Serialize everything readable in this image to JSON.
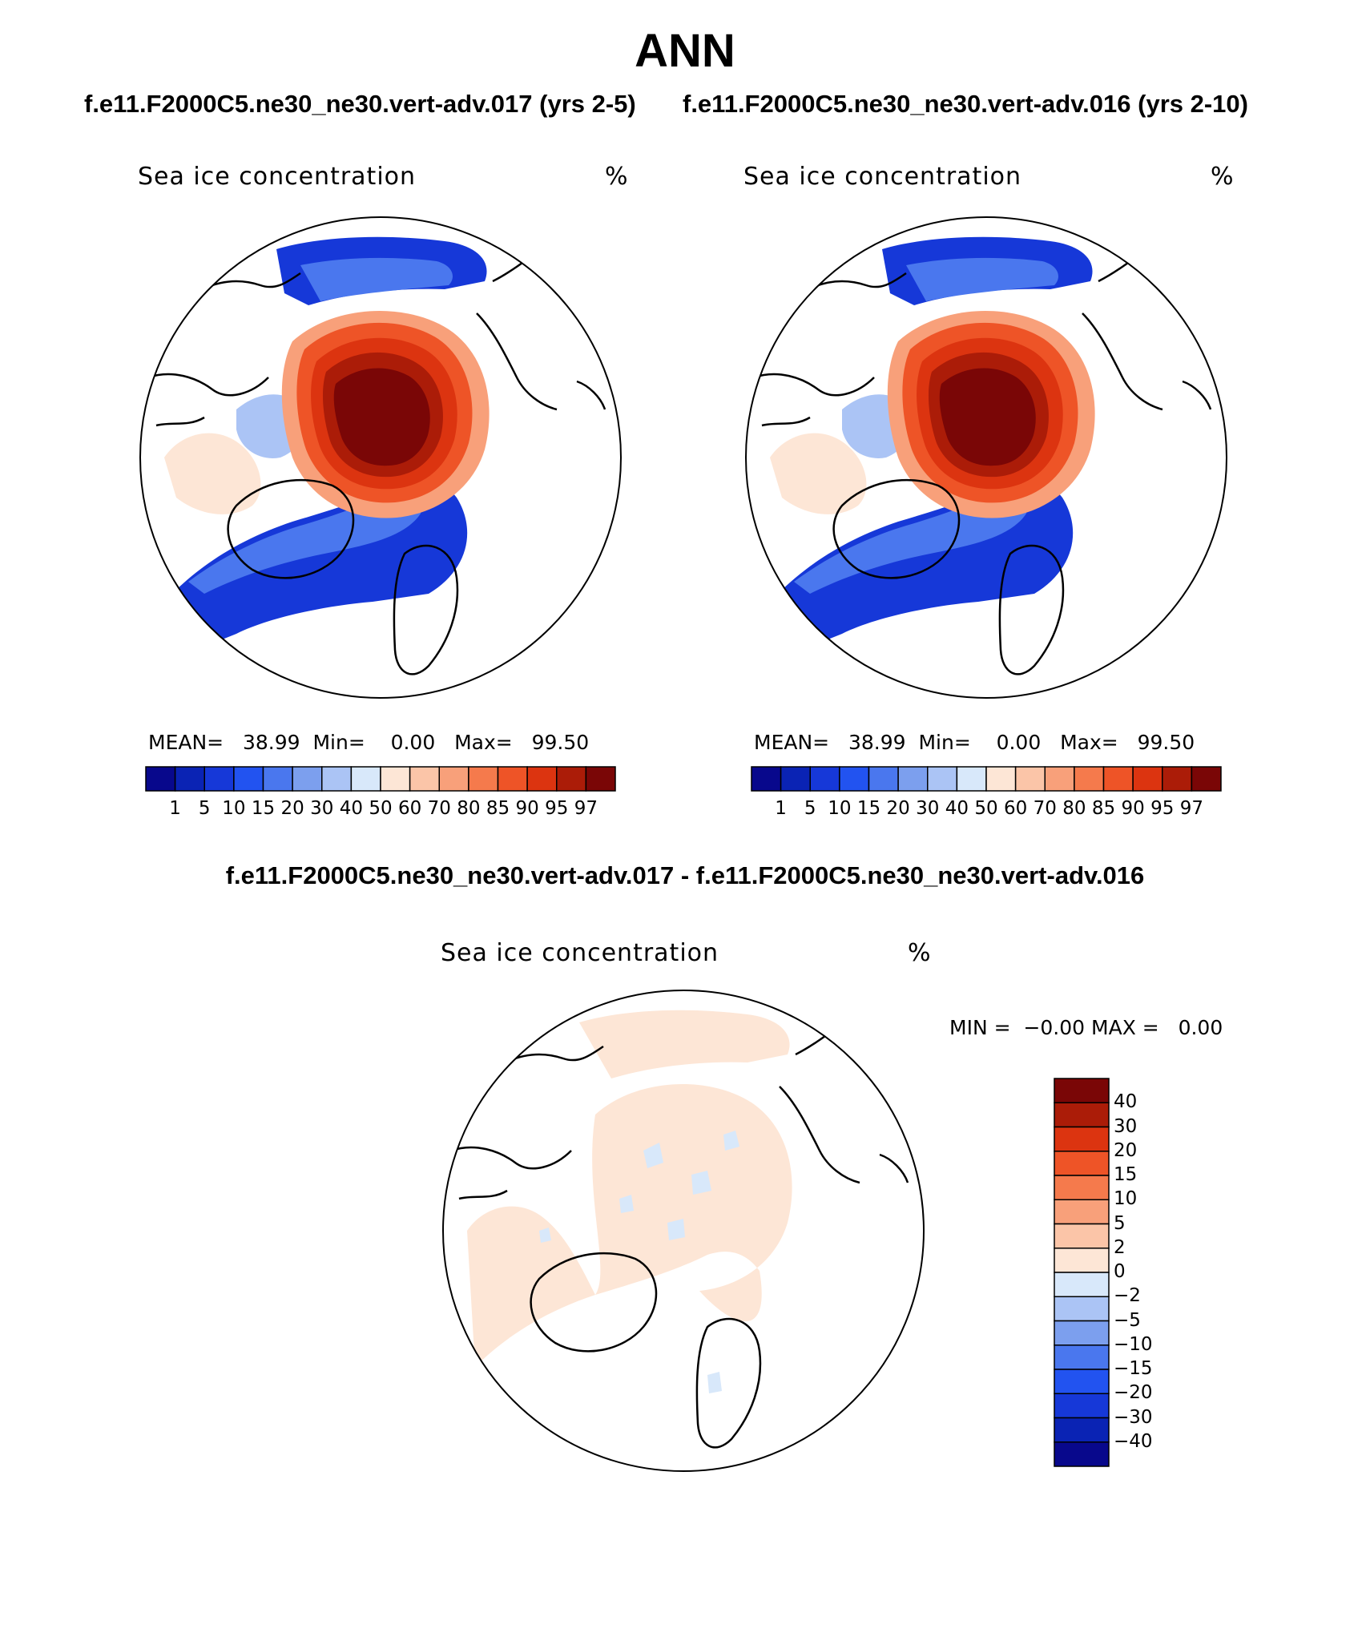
{
  "header": {
    "title": "ANN",
    "case1_title": "f.e11.F2000C5.ne30_ne30.vert-adv.017 (yrs 2-5)",
    "case2_title": "f.e11.F2000C5.ne30_ne30.vert-adv.016 (yrs 2-10)",
    "diff_title": "f.e11.F2000C5.ne30_ne30.vert-adv.017 - f.e11.F2000C5.ne30_ne30.vert-adv.016"
  },
  "panels": [
    {
      "variable": "Sea ice concentration",
      "units": "%",
      "stats": {
        "mean_label": "MEAN=",
        "mean": "38.99",
        "min_label": "Min=",
        "min": "0.00",
        "max_label": "Max=",
        "max": "99.50"
      }
    },
    {
      "variable": "Sea ice concentration",
      "units": "%",
      "stats": {
        "mean_label": "MEAN=",
        "mean": "38.99",
        "min_label": "Min=",
        "min": "0.00",
        "max_label": "Max=",
        "max": "99.50"
      }
    },
    {
      "variable": "Sea ice concentration",
      "units": "%",
      "stats": {
        "min_label": "MIN =",
        "min": "−0.00",
        "max_label": "MAX =",
        "max": "0.00"
      }
    }
  ],
  "colorbar_main": {
    "levels": [
      "1",
      "5",
      "10",
      "15",
      "20",
      "30",
      "40",
      "50",
      "60",
      "70",
      "80",
      "85",
      "90",
      "95",
      "97"
    ],
    "colors": [
      "#08088c",
      "#0a23b4",
      "#1638d8",
      "#2253f0",
      "#4a77ee",
      "#7c9fee",
      "#abc4f5",
      "#d8e8fa",
      "#fde6d6",
      "#fbc5a8",
      "#f8a07a",
      "#f57a4c",
      "#ee5427",
      "#dc3410",
      "#ab1c08",
      "#7a0606"
    ]
  },
  "colorbar_diff": {
    "levels": [
      "40",
      "30",
      "20",
      "15",
      "10",
      "5",
      "2",
      "0",
      "−2",
      "−5",
      "−10",
      "−15",
      "−20",
      "−30",
      "−40"
    ],
    "colors": [
      "#7a0606",
      "#ab1c08",
      "#dc3410",
      "#ee5427",
      "#f57a4c",
      "#f8a07a",
      "#fbc5a8",
      "#fde6d6",
      "#d8e8fa",
      "#abc4f5",
      "#7c9fee",
      "#4a77ee",
      "#2253f0",
      "#1638d8",
      "#0a23b4",
      "#08088c"
    ]
  }
}
